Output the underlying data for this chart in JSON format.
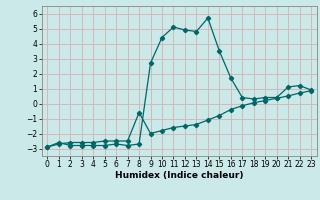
{
  "xlabel": "Humidex (Indice chaleur)",
  "bg_color": "#cce9e9",
  "grid_color": "#d4b8b8",
  "line_color": "#006666",
  "xlim": [
    -0.5,
    23.5
  ],
  "ylim": [
    -3.5,
    6.5
  ],
  "x_ticks": [
    0,
    1,
    2,
    3,
    4,
    5,
    6,
    7,
    8,
    9,
    10,
    11,
    12,
    13,
    14,
    15,
    16,
    17,
    18,
    19,
    20,
    21,
    22,
    23
  ],
  "y_ticks": [
    -3,
    -2,
    -1,
    0,
    1,
    2,
    3,
    4,
    5,
    6
  ],
  "line1_x": [
    0,
    1,
    2,
    3,
    4,
    5,
    6,
    7,
    8,
    9,
    10,
    11,
    12,
    13,
    14,
    15,
    16,
    17,
    18,
    19,
    20,
    21,
    22,
    23
  ],
  "line1_y": [
    -2.9,
    -2.6,
    -2.8,
    -2.8,
    -2.8,
    -2.8,
    -2.7,
    -2.8,
    -2.7,
    2.7,
    4.4,
    5.1,
    4.9,
    4.8,
    5.7,
    3.5,
    1.7,
    0.4,
    0.3,
    0.4,
    0.4,
    1.1,
    1.2,
    0.9
  ],
  "line2_x": [
    0,
    1,
    2,
    3,
    4,
    5,
    6,
    7,
    8,
    9,
    10,
    11,
    12,
    13,
    14,
    15,
    16,
    17,
    18,
    19,
    20,
    21,
    22,
    23
  ],
  "line2_y": [
    -2.9,
    -2.7,
    -2.6,
    -2.6,
    -2.6,
    -2.5,
    -2.5,
    -2.5,
    -0.6,
    -2.0,
    -1.8,
    -1.6,
    -1.5,
    -1.4,
    -1.1,
    -0.8,
    -0.4,
    -0.15,
    0.05,
    0.2,
    0.35,
    0.5,
    0.7,
    0.85
  ]
}
